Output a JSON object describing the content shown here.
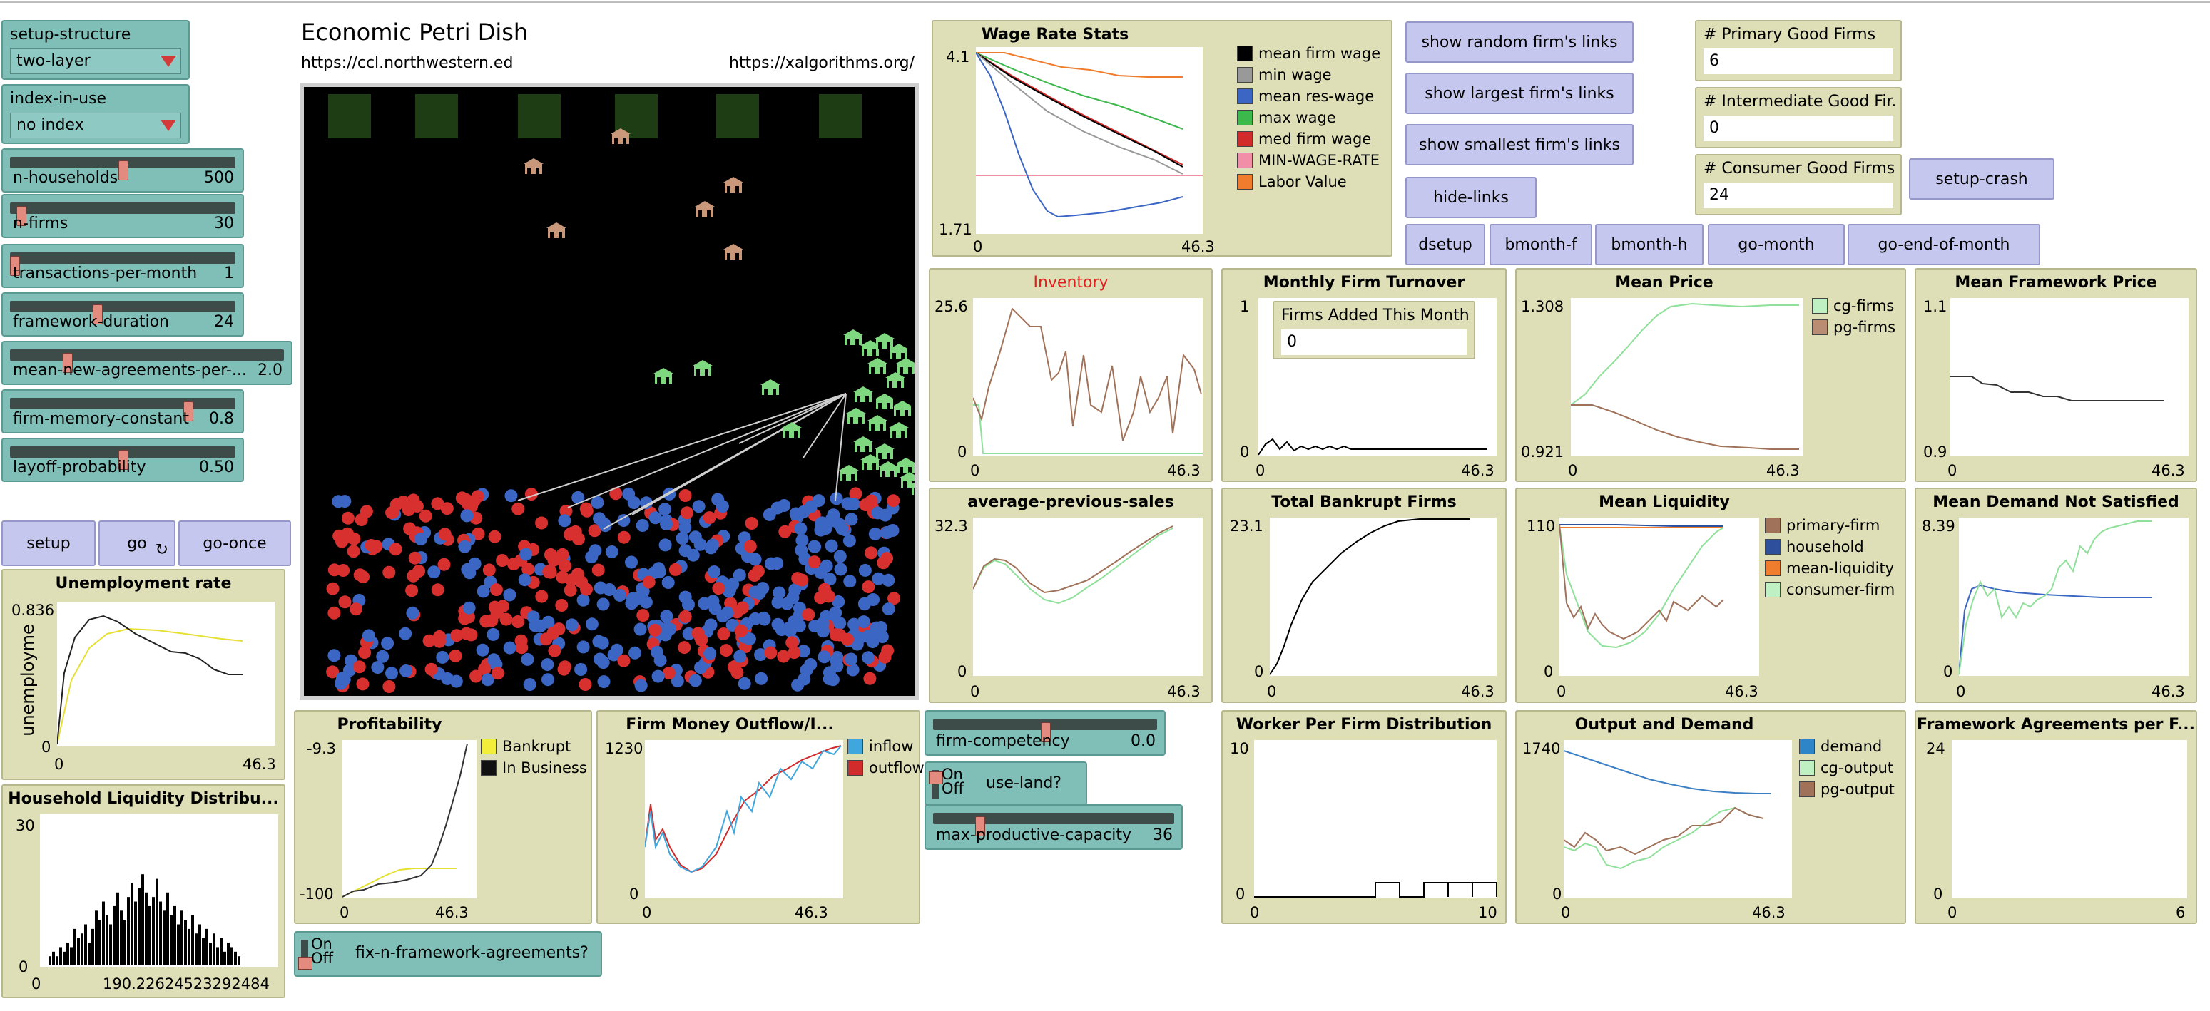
{
  "model_title": "Economic Petri Dish",
  "url_left": "https://ccl.northwestern.ed",
  "url_right": "https://xalgorithms.org/",
  "choosers": {
    "setup_structure": {
      "label": "setup-structure",
      "value": "two-layer"
    },
    "index_in_use": {
      "label": "index-in-use",
      "value": "no index"
    }
  },
  "sliders": {
    "n_households": {
      "label": "n-households",
      "value": "500",
      "level": 0.5
    },
    "n_firms": {
      "label": "n-firms",
      "value": "30",
      "level": 0.03
    },
    "transactions_per_month": {
      "label": "transactions-per-month",
      "value": "1",
      "level": 0.0
    },
    "framework_duration": {
      "label": "framework-duration",
      "value": "24",
      "level": 0.38
    },
    "mean_new_agreements": {
      "label": "mean-new-agreements-per-...",
      "value": "2.0",
      "level": 0.2
    },
    "firm_memory_constant": {
      "label": "firm-memory-constant",
      "value": "0.8",
      "level": 0.8
    },
    "layoff_probability": {
      "label": "layoff-probability",
      "value": "0.50",
      "level": 0.5
    },
    "firm_competency": {
      "label": "firm-competency",
      "value": "0.0",
      "level": 0.5
    },
    "max_productive_capacity": {
      "label": "max-productive-capacity",
      "value": "36",
      "level": 0.18
    }
  },
  "switches": {
    "use_land": {
      "label": "use-land?",
      "on": "On",
      "off": "Off"
    },
    "fix_n_framework": {
      "label": "fix-n-framework-agreements?",
      "on": "On",
      "off": "Off"
    }
  },
  "buttons": {
    "setup": "setup",
    "go": "go",
    "go_once": "go-once",
    "show_random": "show random firm's links",
    "show_largest": "show largest firm's links",
    "show_smallest": "show smallest firm's links",
    "hide_links": "hide-links",
    "dsetup": "dsetup",
    "bmonth_f": "bmonth-f",
    "bmonth_h": "bmonth-h",
    "go_month": "go-month",
    "go_end_of_month": "go-end-of-month",
    "setup_crash": "setup-crash"
  },
  "monitors": {
    "primary": {
      "label": "# Primary Good Firms",
      "value": "6"
    },
    "intermediate": {
      "label": "# Intermediate Good Fir...",
      "value": "0"
    },
    "consumer": {
      "label": "# Consumer Good Firms",
      "value": "24"
    },
    "firms_added": {
      "label": "Firms Added This Month",
      "value": "0"
    }
  },
  "plots": {
    "wage": {
      "title": "Wage Rate Stats",
      "ymax": "4.1",
      "ymin": "1.71",
      "xmin": "0",
      "xmax": "46.3",
      "legend": [
        "mean firm wage",
        "min wage",
        "mean res-wage",
        "max wage",
        "med firm wage",
        "MIN-WAGE-RATE",
        "Labor Value"
      ]
    },
    "unemployment": {
      "title": "Unemployment rate",
      "ymax": "0.836",
      "ymin": "0",
      "xmin": "0",
      "xmax": "46.3",
      "ylabel": "unemployme"
    },
    "hh_liquidity": {
      "title": "Household Liquidity Distribu...",
      "ymax": "30",
      "ymin": "0",
      "xmin": "0",
      "xmax": "190.22624523292484"
    },
    "inventory": {
      "title": "Inventory",
      "ymax": "25.6",
      "ymin": "0",
      "xmin": "0",
      "xmax": "46.3"
    },
    "turnover": {
      "title": "Monthly Firm Turnover",
      "ymax": "1",
      "ymin": "0",
      "xmin": "0",
      "xmax": "46.3"
    },
    "mean_price": {
      "title": "Mean Price",
      "ymax": "1.308",
      "ymin": "0.921",
      "xmin": "0",
      "xmax": "46.3",
      "legend": [
        "cg-firms",
        "pg-firms"
      ]
    },
    "framework_price": {
      "title": "Mean Framework Price",
      "ymax": "1.1",
      "ymin": "0.9",
      "xmin": "0",
      "xmax": "46.3"
    },
    "avg_sales": {
      "title": "average-previous-sales",
      "ymax": "32.3",
      "ymin": "0",
      "xmin": "0",
      "xmax": "46.3"
    },
    "bankrupt": {
      "title": "Total Bankrupt Firms",
      "ymax": "23.1",
      "ymin": "0",
      "xmin": "0",
      "xmax": "46.3"
    },
    "liquidity": {
      "title": "Mean Liquidity",
      "ymax": "110",
      "ymin": "0",
      "xmin": "0",
      "xmax": "46.3",
      "legend": [
        "primary-firm",
        "household",
        "mean-liquidity",
        "consumer-firm"
      ]
    },
    "demand_ns": {
      "title": "Mean Demand Not Satisfied",
      "ymax": "8.39",
      "ymin": "0",
      "xmin": "0",
      "xmax": "46.3"
    },
    "profit": {
      "title": "Profitability",
      "ymax": "-9.3",
      "ymin": "-100",
      "xmin": "0",
      "xmax": "46.3",
      "legend": [
        "Bankrupt",
        "In Business"
      ]
    },
    "money": {
      "title": "Firm Money Outflow/I...",
      "ymax": "1230",
      "ymin": "0",
      "xmin": "0",
      "xmax": "46.3",
      "legend": [
        "inflow",
        "outflow"
      ]
    },
    "worker": {
      "title": "Worker Per Firm Distribution",
      "ymax": "10",
      "ymin": "0",
      "xmin": "0",
      "xmax": "10"
    },
    "output": {
      "title": "Output and Demand",
      "ymax": "1740",
      "ymin": "0",
      "xmin": "0",
      "xmax": "46.3",
      "legend": [
        "demand",
        "cg-output",
        "pg-output"
      ]
    },
    "framework_agree": {
      "title": "Framework Agreements per F...",
      "ymax": "24",
      "ymin": "0",
      "xmin": "0",
      "xmax": "6"
    }
  },
  "colors": {
    "widget_teal": "#7fbfb8",
    "button_lavender": "#c5c7ee",
    "plot_tan": "#dedfb7",
    "household_red": "#d7302f",
    "household_blue": "#3b66c4",
    "cg_firm_green": "#7fd77f",
    "pg_firm_brown": "#c9987a"
  }
}
